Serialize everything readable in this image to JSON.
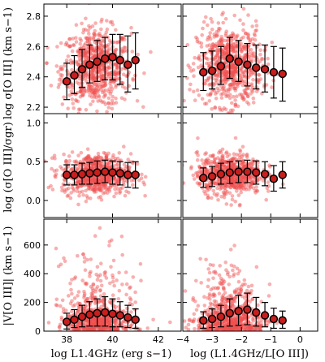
{
  "chart_data": {
    "type": "scatter",
    "colors": {
      "scatter": "#f05050",
      "marker_fill": "#c81e1e",
      "marker_edge": "#000000",
      "errorbar": "#000000"
    },
    "columns": [
      {
        "xlabel": "log L1.4GHz (erg s−1)",
        "xlim": [
          37,
          43
        ],
        "xticks": [
          38,
          40,
          42
        ],
        "xticklabels": [
          "38",
          "40",
          "42"
        ]
      },
      {
        "xlabel": "log (L1.4GHz/L[O III])",
        "xlim": [
          -4,
          0.6
        ],
        "xticks": [
          -4,
          -3,
          -2,
          -1,
          0
        ],
        "xticklabels": [
          "−4",
          "−3",
          "−2",
          "−1",
          "0"
        ]
      }
    ],
    "rows": [
      {
        "ylabel": "log σ[O III] (km s−1)",
        "ylim": [
          2.12,
          2.88
        ],
        "yticks": [
          2.2,
          2.4,
          2.6,
          2.8
        ],
        "yticklabels": [
          "2.2",
          "2.4",
          "2.6",
          "2.8"
        ]
      },
      {
        "ylabel": "log (σ[O III]/σgr)",
        "ylim": [
          -0.22,
          1.12
        ],
        "yticks": [
          0.0,
          0.5,
          1.0
        ],
        "yticklabels": [
          "0.0",
          "0.5",
          "1.0"
        ]
      },
      {
        "ylabel": "|V[O III]| (km s−1)",
        "ylim": [
          0,
          780
        ],
        "yticks": [
          0,
          200,
          400,
          600
        ],
        "yticklabels": [
          "0",
          "200",
          "400",
          "600"
        ]
      }
    ],
    "panels": [
      {
        "row": 0,
        "col": 0,
        "scatter_cloud": {
          "x_center": 39.3,
          "x_sd": 0.75,
          "y_center": 2.46,
          "y_sd": 0.13,
          "n": 700
        },
        "binned": [
          {
            "x": 38.0,
            "y": 2.37,
            "err_lo": 0.12,
            "err_hi": 0.12
          },
          {
            "x": 38.33,
            "y": 2.41,
            "err_lo": 0.12,
            "err_hi": 0.13
          },
          {
            "x": 38.67,
            "y": 2.45,
            "err_lo": 0.12,
            "err_hi": 0.13
          },
          {
            "x": 39.0,
            "y": 2.48,
            "err_lo": 0.12,
            "err_hi": 0.13
          },
          {
            "x": 39.33,
            "y": 2.5,
            "err_lo": 0.13,
            "err_hi": 0.14
          },
          {
            "x": 39.67,
            "y": 2.52,
            "err_lo": 0.14,
            "err_hi": 0.14
          },
          {
            "x": 40.0,
            "y": 2.53,
            "err_lo": 0.15,
            "err_hi": 0.15
          },
          {
            "x": 40.33,
            "y": 2.51,
            "err_lo": 0.16,
            "err_hi": 0.17
          },
          {
            "x": 40.67,
            "y": 2.48,
            "err_lo": 0.18,
            "err_hi": 0.19
          },
          {
            "x": 41.0,
            "y": 2.51,
            "err_lo": 0.19,
            "err_hi": 0.18
          }
        ]
      },
      {
        "row": 0,
        "col": 1,
        "scatter_cloud": {
          "x_center": -2.4,
          "x_sd": 0.55,
          "y_center": 2.47,
          "y_sd": 0.13,
          "n": 700
        },
        "binned": [
          {
            "x": -3.3,
            "y": 2.43,
            "err_lo": 0.12,
            "err_hi": 0.13
          },
          {
            "x": -3.0,
            "y": 2.44,
            "err_lo": 0.12,
            "err_hi": 0.13
          },
          {
            "x": -2.7,
            "y": 2.47,
            "err_lo": 0.12,
            "err_hi": 0.13
          },
          {
            "x": -2.4,
            "y": 2.52,
            "err_lo": 0.13,
            "err_hi": 0.14
          },
          {
            "x": -2.1,
            "y": 2.5,
            "err_lo": 0.13,
            "err_hi": 0.14
          },
          {
            "x": -1.8,
            "y": 2.48,
            "err_lo": 0.14,
            "err_hi": 0.14
          },
          {
            "x": -1.5,
            "y": 2.46,
            "err_lo": 0.14,
            "err_hi": 0.15
          },
          {
            "x": -1.2,
            "y": 2.45,
            "err_lo": 0.15,
            "err_hi": 0.16
          },
          {
            "x": -0.9,
            "y": 2.43,
            "err_lo": 0.17,
            "err_hi": 0.17
          },
          {
            "x": -0.6,
            "y": 2.42,
            "err_lo": 0.18,
            "err_hi": 0.17
          }
        ]
      },
      {
        "row": 1,
        "col": 0,
        "scatter_cloud": {
          "x_center": 39.3,
          "x_sd": 0.75,
          "y_center": 0.34,
          "y_sd": 0.13,
          "n": 700
        },
        "binned": [
          {
            "x": 38.0,
            "y": 0.33,
            "err_lo": 0.13,
            "err_hi": 0.13
          },
          {
            "x": 38.33,
            "y": 0.33,
            "err_lo": 0.13,
            "err_hi": 0.13
          },
          {
            "x": 38.67,
            "y": 0.34,
            "err_lo": 0.13,
            "err_hi": 0.14
          },
          {
            "x": 39.0,
            "y": 0.35,
            "err_lo": 0.14,
            "err_hi": 0.14
          },
          {
            "x": 39.33,
            "y": 0.36,
            "err_lo": 0.14,
            "err_hi": 0.15
          },
          {
            "x": 39.67,
            "y": 0.37,
            "err_lo": 0.14,
            "err_hi": 0.15
          },
          {
            "x": 40.0,
            "y": 0.36,
            "err_lo": 0.15,
            "err_hi": 0.15
          },
          {
            "x": 40.33,
            "y": 0.35,
            "err_lo": 0.15,
            "err_hi": 0.15
          },
          {
            "x": 40.67,
            "y": 0.33,
            "err_lo": 0.16,
            "err_hi": 0.16
          },
          {
            "x": 41.0,
            "y": 0.33,
            "err_lo": 0.17,
            "err_hi": 0.17
          }
        ]
      },
      {
        "row": 1,
        "col": 1,
        "scatter_cloud": {
          "x_center": -2.4,
          "x_sd": 0.55,
          "y_center": 0.34,
          "y_sd": 0.13,
          "n": 700
        },
        "binned": [
          {
            "x": -3.3,
            "y": 0.29,
            "err_lo": 0.12,
            "err_hi": 0.13
          },
          {
            "x": -3.0,
            "y": 0.31,
            "err_lo": 0.13,
            "err_hi": 0.13
          },
          {
            "x": -2.7,
            "y": 0.34,
            "err_lo": 0.13,
            "err_hi": 0.14
          },
          {
            "x": -2.4,
            "y": 0.36,
            "err_lo": 0.14,
            "err_hi": 0.14
          },
          {
            "x": -2.1,
            "y": 0.37,
            "err_lo": 0.14,
            "err_hi": 0.14
          },
          {
            "x": -1.8,
            "y": 0.37,
            "err_lo": 0.14,
            "err_hi": 0.15
          },
          {
            "x": -1.5,
            "y": 0.36,
            "err_lo": 0.15,
            "err_hi": 0.15
          },
          {
            "x": -1.2,
            "y": 0.34,
            "err_lo": 0.15,
            "err_hi": 0.16
          },
          {
            "x": -0.9,
            "y": 0.28,
            "err_lo": 0.16,
            "err_hi": 0.17
          },
          {
            "x": -0.6,
            "y": 0.33,
            "err_lo": 0.17,
            "err_hi": 0.17
          }
        ]
      },
      {
        "row": 2,
        "col": 0,
        "scatter_cloud": {
          "x_center": 39.3,
          "x_sd": 0.75,
          "y_scale": 110,
          "y_max": 770,
          "n": 700
        },
        "binned": [
          {
            "x": 38.0,
            "y": 65,
            "err_lo": 50,
            "err_hi": 60
          },
          {
            "x": 38.33,
            "y": 80,
            "err_lo": 55,
            "err_hi": 70
          },
          {
            "x": 38.67,
            "y": 100,
            "err_lo": 70,
            "err_hi": 80
          },
          {
            "x": 39.0,
            "y": 115,
            "err_lo": 80,
            "err_hi": 90
          },
          {
            "x": 39.33,
            "y": 125,
            "err_lo": 90,
            "err_hi": 100
          },
          {
            "x": 39.67,
            "y": 130,
            "err_lo": 95,
            "err_hi": 110
          },
          {
            "x": 40.0,
            "y": 120,
            "err_lo": 90,
            "err_hi": 105
          },
          {
            "x": 40.33,
            "y": 110,
            "err_lo": 80,
            "err_hi": 95
          },
          {
            "x": 40.67,
            "y": 95,
            "err_lo": 70,
            "err_hi": 85
          },
          {
            "x": 41.0,
            "y": 80,
            "err_lo": 60,
            "err_hi": 75
          }
        ]
      },
      {
        "row": 2,
        "col": 1,
        "scatter_cloud": {
          "x_center": -2.4,
          "x_sd": 0.55,
          "y_scale": 110,
          "y_max": 770,
          "n": 700
        },
        "binned": [
          {
            "x": -3.3,
            "y": 75,
            "err_lo": 55,
            "err_hi": 60
          },
          {
            "x": -3.0,
            "y": 85,
            "err_lo": 60,
            "err_hi": 70
          },
          {
            "x": -2.7,
            "y": 100,
            "err_lo": 70,
            "err_hi": 80
          },
          {
            "x": -2.4,
            "y": 125,
            "err_lo": 90,
            "err_hi": 100
          },
          {
            "x": -2.1,
            "y": 140,
            "err_lo": 100,
            "err_hi": 110
          },
          {
            "x": -1.8,
            "y": 150,
            "err_lo": 105,
            "err_hi": 115
          },
          {
            "x": -1.5,
            "y": 130,
            "err_lo": 95,
            "err_hi": 105
          },
          {
            "x": -1.2,
            "y": 110,
            "err_lo": 80,
            "err_hi": 90
          },
          {
            "x": -0.9,
            "y": 85,
            "err_lo": 65,
            "err_hi": 75
          },
          {
            "x": -0.6,
            "y": 75,
            "err_lo": 55,
            "err_hi": 65
          }
        ]
      }
    ]
  }
}
